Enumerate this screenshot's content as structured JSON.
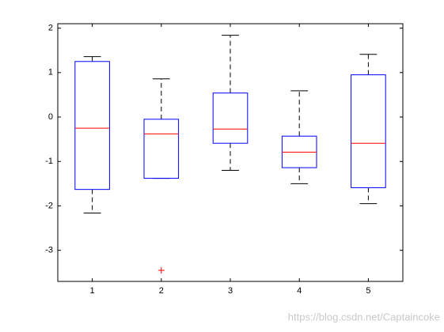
{
  "chart_data": {
    "type": "box",
    "categories": [
      1,
      2,
      3,
      4,
      5
    ],
    "whisker_low": [
      -2.16,
      -1.38,
      -1.2,
      -1.5,
      -1.95
    ],
    "q1": [
      -1.63,
      -1.38,
      -0.59,
      -1.14,
      -1.59
    ],
    "median": [
      -0.25,
      -0.38,
      -0.27,
      -0.79,
      -0.59
    ],
    "q3": [
      1.25,
      -0.05,
      0.54,
      -0.43,
      0.95
    ],
    "whisker_high": [
      1.36,
      0.86,
      1.84,
      0.59,
      1.41
    ],
    "outliers": [
      [],
      [
        -3.45
      ],
      [],
      [],
      []
    ],
    "box_color": "#0000ff",
    "median_color": "#ff0000",
    "whisker_color": "#000000",
    "outlier_color": "#ff0000",
    "ylim": [
      -3.7,
      2.1
    ],
    "yticks": [
      -3,
      -2,
      -1,
      0,
      1,
      2
    ],
    "watermark": "https://blog.csdn.net/Captaincoke"
  }
}
